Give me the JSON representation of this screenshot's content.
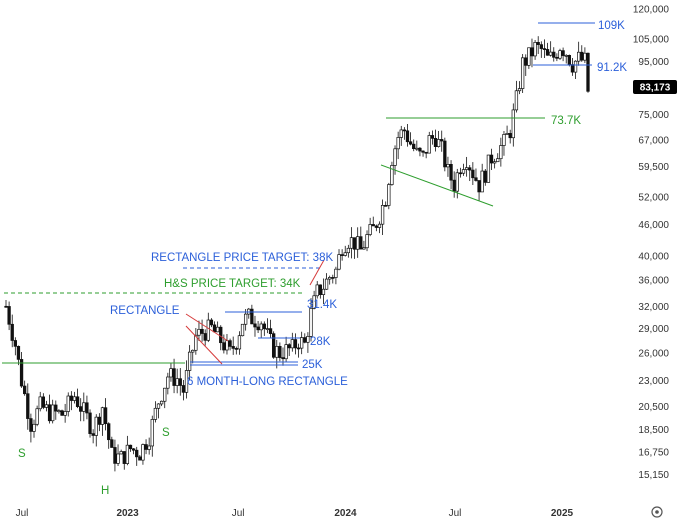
{
  "chart_data": {
    "type": "candlestick",
    "title": "",
    "xlabel": "",
    "ylabel": "",
    "y_scale": "log",
    "ylim": [
      14400,
      121500
    ],
    "y_ticks": [
      "120,000",
      "105,000",
      "95,000",
      "83,173",
      "75,000",
      "67,000",
      "59,500",
      "52,000",
      "46,000",
      "40,000",
      "36,000",
      "32,000",
      "29,000",
      "26,000",
      "23,000",
      "20,500",
      "18,500",
      "16,750",
      "15,150"
    ],
    "y_tick_values": [
      120000,
      105000,
      95000,
      75000,
      67000,
      59500,
      52000,
      46000,
      40000,
      36000,
      32000,
      29000,
      26000,
      23000,
      20500,
      18500,
      16750,
      15150
    ],
    "x_labels": [
      {
        "label": "Jul",
        "bold": false,
        "t": 0.0
      },
      {
        "label": "2023",
        "bold": true,
        "t": 0.1955
      },
      {
        "label": "Jul",
        "bold": false,
        "t": 0.4002
      },
      {
        "label": "2024",
        "bold": true,
        "t": 0.599
      },
      {
        "label": "Jul",
        "bold": false,
        "t": 0.8018
      },
      {
        "label": "2025",
        "bold": true,
        "t": 1.0
      }
    ],
    "x_start": "2022-06",
    "x_end": "2025-01",
    "last_price": {
      "value": 83173,
      "label": "83,173",
      "color": "#000000"
    },
    "series": [
      {
        "type": "candlestick",
        "anchors": [
          [
            0,
            32000
          ],
          [
            3,
            27000
          ],
          [
            5,
            23000
          ],
          [
            8,
            19000
          ],
          [
            11,
            20500
          ],
          [
            14,
            20000
          ],
          [
            18,
            19800
          ],
          [
            22,
            21500
          ],
          [
            25,
            20000
          ],
          [
            28,
            18500
          ],
          [
            31,
            20500
          ],
          [
            34,
            16500
          ],
          [
            37,
            16300
          ],
          [
            40,
            17000
          ],
          [
            43,
            16700
          ],
          [
            46,
            18000
          ],
          [
            49,
            21000
          ],
          [
            52,
            23500
          ],
          [
            55,
            23200
          ],
          [
            57,
            22000
          ],
          [
            59,
            25000
          ],
          [
            61,
            28000
          ],
          [
            63,
            28500
          ],
          [
            66,
            29000
          ],
          [
            68,
            28000
          ],
          [
            70,
            27000
          ],
          [
            72,
            26000
          ],
          [
            74,
            27500
          ],
          [
            76,
            30000
          ],
          [
            78,
            30500
          ],
          [
            80,
            30200
          ],
          [
            82,
            30000
          ],
          [
            84,
            28000
          ],
          [
            86,
            26500
          ],
          [
            88,
            26000
          ],
          [
            90,
            26300
          ],
          [
            92,
            26500
          ],
          [
            94,
            27500
          ],
          [
            96,
            27000
          ],
          [
            98,
            31000
          ],
          [
            100,
            34000
          ],
          [
            102,
            35000
          ],
          [
            104,
            36500
          ],
          [
            106,
            37500
          ],
          [
            108,
            42000
          ],
          [
            110,
            43000
          ],
          [
            112,
            42500
          ],
          [
            114,
            41000
          ],
          [
            116,
            43500
          ],
          [
            118,
            45000
          ],
          [
            120,
            48000
          ],
          [
            122,
            52000
          ],
          [
            124,
            62000
          ],
          [
            126,
            68000
          ],
          [
            128,
            70000
          ],
          [
            130,
            66000
          ],
          [
            132,
            63000
          ],
          [
            134,
            62000
          ],
          [
            136,
            67000
          ],
          [
            138,
            68000
          ],
          [
            140,
            64000
          ],
          [
            142,
            58000
          ],
          [
            144,
            55000
          ],
          [
            146,
            60000
          ],
          [
            148,
            62000
          ],
          [
            150,
            58000
          ],
          [
            152,
            55000
          ],
          [
            154,
            58000
          ],
          [
            156,
            62000
          ],
          [
            158,
            64000
          ],
          [
            160,
            66000
          ],
          [
            162,
            70000
          ],
          [
            164,
            80000
          ],
          [
            166,
            94000
          ],
          [
            168,
            97000
          ],
          [
            170,
            101000
          ],
          [
            172,
            100000
          ],
          [
            174,
            96000
          ],
          [
            176,
            97000
          ],
          [
            178,
            102000
          ],
          [
            180,
            99000
          ],
          [
            182,
            94000
          ],
          [
            184,
            96000
          ],
          [
            186,
            95000
          ],
          [
            187,
            83173
          ]
        ],
        "color_up": "#000000",
        "color_down": "#000000"
      }
    ],
    "levels": [
      {
        "name": "109K",
        "value": 109000,
        "color": "#2b5fd9",
        "from_t": 0.917,
        "to_t": 1.03
      },
      {
        "name": "91.2K",
        "value": 91200,
        "color": "#2b5fd9",
        "from_t": 0.907,
        "to_t": 1.03
      },
      {
        "name": "73.7K",
        "value": 73700,
        "color": "#2e9e2e",
        "from_t": 0.66,
        "to_t": 0.884
      },
      {
        "name": "31.4K",
        "value": 31400,
        "color": "#2b5fd9",
        "from_t": 0.331,
        "to_t": 0.506
      },
      {
        "name": "28K",
        "value": 28000,
        "color": "#2b5fd9",
        "from_t": 0.443,
        "to_t": 0.5
      },
      {
        "name": "25K",
        "value": 25000,
        "color": "#2b5fd9",
        "from_t": 0.317,
        "to_t": 0.496
      }
    ],
    "neckline": {
      "value": 25400,
      "color": "#2e9e2e",
      "from_t": 0.0,
      "to_t": 0.317
    },
    "targets": [
      {
        "name": "H&S PRICE TARGET: 34K",
        "value": 34000,
        "color": "#2e9e2e"
      },
      {
        "name": "RECTANGLE PRICE TARGET: 38K",
        "value": 38000,
        "color": "#2b5fd9"
      }
    ],
    "annotations": [
      {
        "text": "RECTANGLE",
        "color": "#2b5fd9"
      },
      {
        "text": "6 MONTH-LONG RECTANGLE",
        "color": "#2b5fd9"
      },
      {
        "text": "S",
        "color": "#2e9e2e"
      },
      {
        "text": "H",
        "color": "#2e9e2e"
      },
      {
        "text": "S",
        "color": "#2e9e2e"
      }
    ]
  }
}
